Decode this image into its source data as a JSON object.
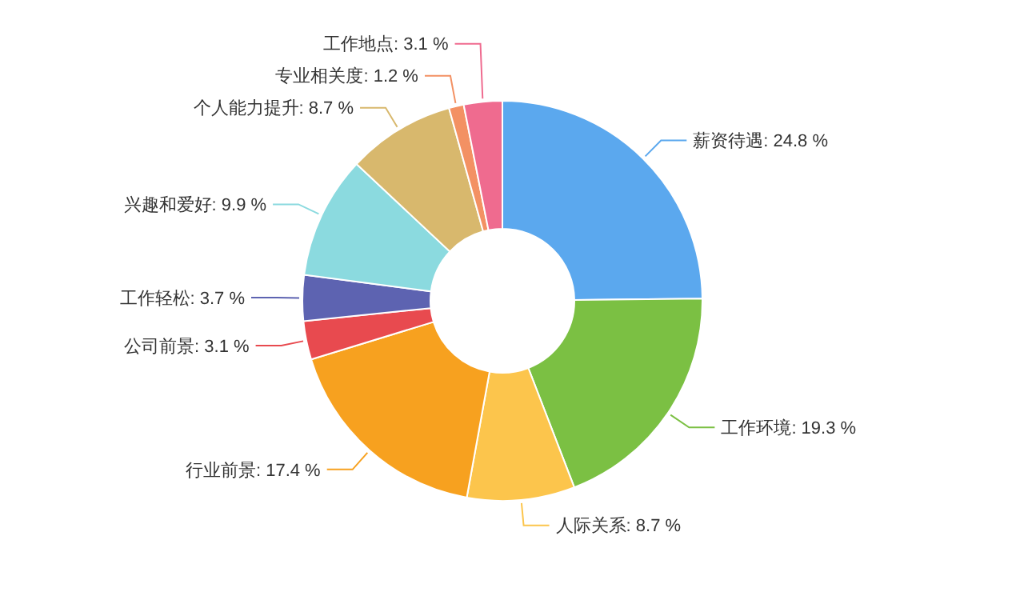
{
  "chart_data": {
    "type": "donut",
    "categories": [
      "薪资待遇",
      "工作环境",
      "人际关系",
      "行业前景",
      "公司前景",
      "工作轻松",
      "兴趣和爱好",
      "个人能力提升",
      "专业相关度",
      "工作地点"
    ],
    "values": [
      24.8,
      19.3,
      8.7,
      17.4,
      3.1,
      3.7,
      9.9,
      8.7,
      1.2,
      3.1
    ],
    "value_labels": [
      "24.8 %",
      "19.3 %",
      "8.7 %",
      "17.4 %",
      "3.1 %",
      "3.7 %",
      "9.9 %",
      "8.7 %",
      "1.2 %",
      "3.1 %"
    ],
    "colors": [
      "#5ba8ee",
      "#7bc043",
      "#fcc54c",
      "#f7a11f",
      "#e84a4f",
      "#5d63b1",
      "#8bdadf",
      "#d8b86d",
      "#f39163",
      "#ef6b8f"
    ],
    "legend": false
  }
}
